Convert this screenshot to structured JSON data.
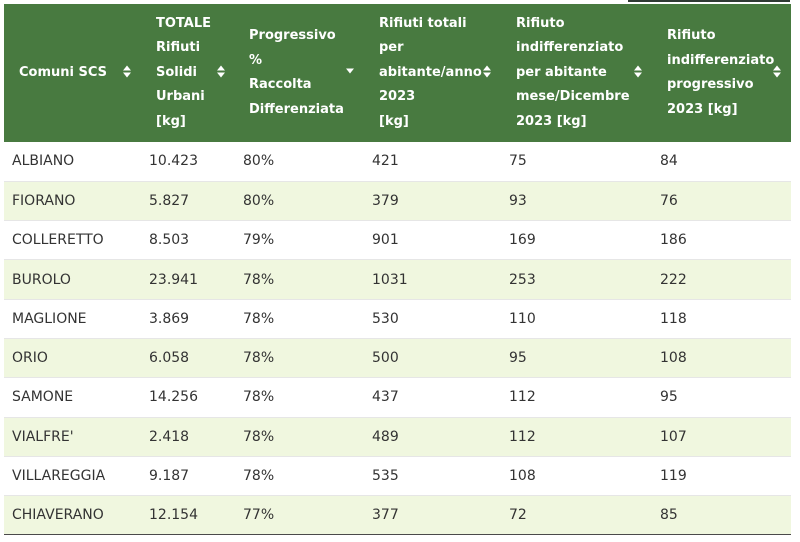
{
  "table": {
    "headers": [
      {
        "label": "Comuni SCS",
        "sort_icon": "sort-both-icon"
      },
      {
        "label": "TOTALE Rifiuti Solidi Urbani [kg]",
        "sort_icon": "sort-both-icon"
      },
      {
        "label": "Progressivo % Raccolta Differenziata",
        "sort_icon": "sort-desc-icon"
      },
      {
        "label": "Rifiuti totali per abitante/anno 2023 [kg]",
        "sort_icon": "sort-both-icon"
      },
      {
        "label": "Rifiuto indifferenziato per abitante mese/Dicembre 2023 [kg]",
        "sort_icon": "sort-both-icon"
      },
      {
        "label": "Rifiuto indifferenziato progressivo 2023 [kg]",
        "sort_icon": "sort-both-icon"
      }
    ],
    "header_lines": [
      [
        "Comuni SCS"
      ],
      [
        "TOTALE",
        "Rifiuti",
        "Solidi",
        "Urbani",
        "[kg]"
      ],
      [
        "Progressivo %",
        "Raccolta",
        "Differenziata"
      ],
      [
        "Rifiuti totali",
        "per",
        "abitante/anno",
        "2023",
        "[kg]"
      ],
      [
        "Rifiuto",
        "indifferenziato",
        "per abitante",
        "mese/Dicembre",
        "2023 [kg]"
      ],
      [
        "Rifiuto",
        "indifferenziato",
        "progressivo",
        "2023 [kg]"
      ]
    ],
    "rows": [
      [
        "ALBIANO",
        "10.423",
        "80%",
        "421",
        "75",
        "84"
      ],
      [
        "FIORANO",
        "5.827",
        "80%",
        "379",
        "93",
        "76"
      ],
      [
        "COLLERETTO",
        "8.503",
        "79%",
        "901",
        "169",
        "186"
      ],
      [
        "BUROLO",
        "23.941",
        "78%",
        "1031",
        "253",
        "222"
      ],
      [
        "MAGLIONE",
        "3.869",
        "78%",
        "530",
        "110",
        "118"
      ],
      [
        "ORIO",
        "6.058",
        "78%",
        "500",
        "95",
        "108"
      ],
      [
        "SAMONE",
        "14.256",
        "78%",
        "437",
        "112",
        "95"
      ],
      [
        "VIALFRE'",
        "2.418",
        "78%",
        "489",
        "112",
        "107"
      ],
      [
        "VILLAREGGIA",
        "9.187",
        "78%",
        "535",
        "108",
        "119"
      ],
      [
        "CHIAVERANO",
        "12.154",
        "77%",
        "377",
        "72",
        "85"
      ]
    ]
  },
  "colors": {
    "header_bg": "#487a40",
    "stripe_bg": "#f0f7df"
  }
}
